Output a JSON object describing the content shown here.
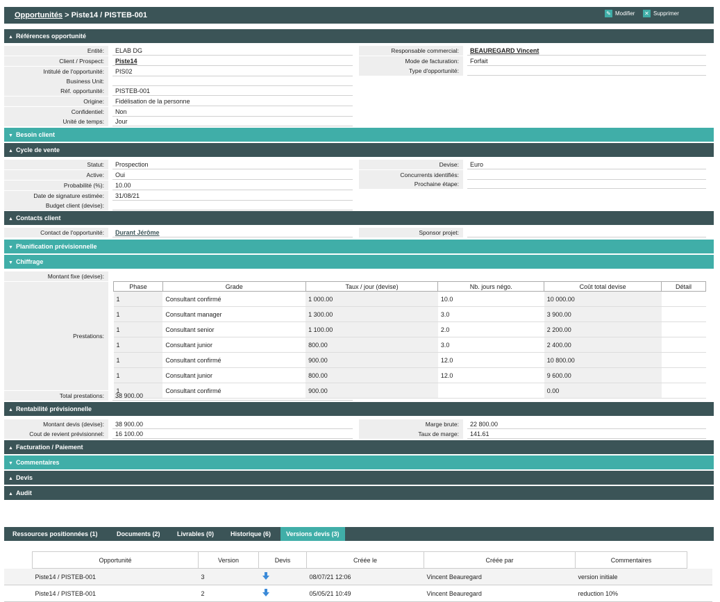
{
  "header": {
    "breadcrumb_link": "Opportunités",
    "breadcrumb_rest": " > Piste14 / PISTEB-001",
    "modify_label": "Modifier",
    "delete_label": "Supprimer"
  },
  "sections": {
    "references": "Références opportunité",
    "besoin": "Besoin client",
    "cycle": "Cycle de vente",
    "contacts": "Contacts client",
    "planification": "Planification prévisionnelle",
    "chiffrage": "Chiffrage",
    "rentabilite": "Rentabilité prévisionnelle",
    "facturation": "Facturation / Paiement",
    "commentaires": "Commentaires",
    "devis": "Devis",
    "audit": "Audit"
  },
  "references": {
    "left": [
      {
        "label": "Entité:",
        "value": "ELAB DG"
      },
      {
        "label": "Client / Prospect:",
        "value": "Piste14"
      },
      {
        "label": "Intitulé de l'opportunité:",
        "value": "PIS02"
      },
      {
        "label": "Business Unit:",
        "value": ""
      },
      {
        "label": "Réf. opportunité:",
        "value": "PISTEB-001"
      },
      {
        "label": "Origine:",
        "value": "Fidélisation de la personne"
      },
      {
        "label": "Confidentiel:",
        "value": "Non"
      },
      {
        "label": "Unité de temps:",
        "value": "Jour"
      }
    ],
    "right": [
      {
        "label": "Responsable commercial:",
        "value": "BEAUREGARD Vincent"
      },
      {
        "label": "Mode de facturation:",
        "value": "Forfait"
      },
      {
        "label": "Type d'opportunité:",
        "value": ""
      }
    ]
  },
  "cycle": {
    "left": [
      {
        "label": "Statut:",
        "value": "Prospection"
      },
      {
        "label": "Active:",
        "value": "Oui"
      },
      {
        "label": "Probabilité (%):",
        "value": "10.00"
      },
      {
        "label": "Date de signature estimée:",
        "value": "31/08/21"
      },
      {
        "label": "Budget client (devise):",
        "value": ""
      }
    ],
    "right": [
      {
        "label": "Devise:",
        "value": "Euro"
      },
      {
        "label": "Concurrents identifiés:",
        "value": ""
      },
      {
        "label": "Prochaine étape:",
        "value": ""
      }
    ]
  },
  "contacts": {
    "contact_label": "Contact de l'opportunité:",
    "contact_value": "Durant Jérôme",
    "sponsor_label": "Sponsor projet:",
    "sponsor_value": ""
  },
  "chiffrage": {
    "montant_label": "Montant fixe (devise):",
    "prestations_label": "Prestations:",
    "total_label": "Total prestations:",
    "total_value": "38 900.00",
    "columns": [
      "Phase",
      "Grade",
      "Taux / jour (devise)",
      "Nb. jours négo.",
      "Coût total devise",
      "Détail"
    ],
    "rows": [
      [
        "1",
        "Consultant confirmé",
        "1 000.00",
        "10.0",
        "10 000.00",
        ""
      ],
      [
        "1",
        "Consultant manager",
        "1 300.00",
        "3.0",
        "3 900.00",
        ""
      ],
      [
        "1",
        "Consultant senior",
        "1 100.00",
        "2.0",
        "2 200.00",
        ""
      ],
      [
        "1",
        "Consultant junior",
        "800.00",
        "3.0",
        "2 400.00",
        ""
      ],
      [
        "1",
        "Consultant confirmé",
        "900.00",
        "12.0",
        "10 800.00",
        ""
      ],
      [
        "1",
        "Consultant junior",
        "800.00",
        "12.0",
        "9 600.00",
        ""
      ],
      [
        "1",
        "Consultant confirmé",
        "900.00",
        "",
        "0.00",
        ""
      ]
    ]
  },
  "rentabilite": {
    "left": [
      {
        "label": "Montant devis (devise):",
        "value": "38 900.00"
      },
      {
        "label": "Cout de revient prévisionnel:",
        "value": "16 100.00"
      }
    ],
    "right": [
      {
        "label": "Marge brute:",
        "value": "22 800.00"
      },
      {
        "label": "Taux de marge:",
        "value": "141.61"
      }
    ]
  },
  "tabs": [
    "Ressources positionnées (1)",
    "Documents (2)",
    "Livrables (0)",
    "Historique (6)",
    "Versions devis (3)"
  ],
  "versions": {
    "columns": [
      "Opportunité",
      "Version",
      "Devis",
      "Créée le",
      "Créée par",
      "Commentaires"
    ],
    "rows": [
      [
        "Piste14 / PISTEB-001",
        "3",
        "",
        "08/07/21 12:06",
        "Vincent Beauregard",
        "version initiale"
      ],
      [
        "Piste14 / PISTEB-001",
        "2",
        "",
        "05/05/21 10:49",
        "Vincent Beauregard",
        "reduction 10%"
      ]
    ]
  }
}
